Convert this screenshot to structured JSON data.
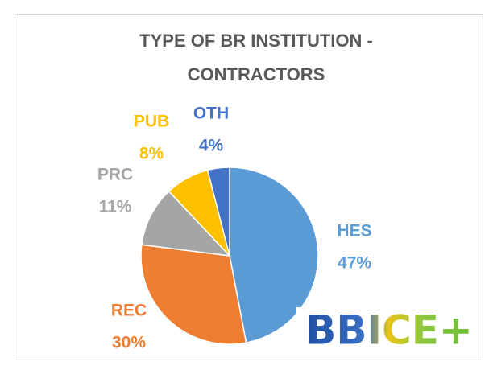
{
  "chart_data": {
    "type": "pie",
    "title": "TYPE OF BR INSTITUTION - CONTRACTORS",
    "categories": [
      "HES",
      "REC",
      "PRC",
      "PUB",
      "OTH"
    ],
    "values": [
      47,
      30,
      11,
      8,
      4
    ],
    "value_labels": [
      "47%",
      "30%",
      "11%",
      "8%",
      "4%"
    ],
    "colors": [
      "#5b9bd5",
      "#ed7d31",
      "#a5a5a5",
      "#ffc000",
      "#4472c4"
    ],
    "logo": "BBICE+"
  }
}
